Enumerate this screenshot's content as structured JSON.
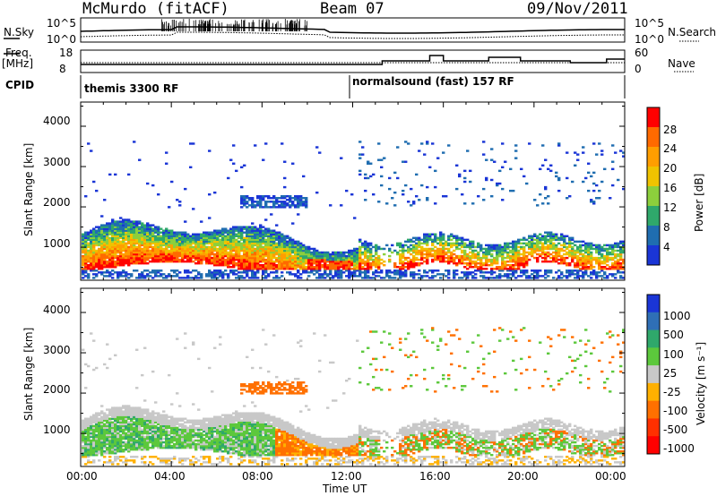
{
  "header": {
    "title": "McMurdo (fitACF)",
    "beam": "Beam 07",
    "date": "09/Nov/2011"
  },
  "strip_labels": {
    "nsky": "N.Sky",
    "nsky_hi": "10^5",
    "nsky_lo": "10^0",
    "nsearch": "N.Search",
    "nsearch_hi": "10^5",
    "nsearch_lo": "10^0",
    "freq": "Freq.",
    "freq_unit": "[MHz]",
    "freq_hi": "18",
    "freq_lo": "8",
    "nave": "Nave",
    "nave_hi": "60",
    "nave_lo": "0",
    "cpid": "CPID",
    "mode1": "themis 3300 RF",
    "mode2": "normalsound (fast) 157 RF"
  },
  "chart_data": [
    {
      "type": "heatmap",
      "panel": "power",
      "ylabel": "Slant Range [km]",
      "yticks": [
        "4000",
        "3000",
        "2000",
        "1000"
      ],
      "ylim": [
        180,
        4600
      ],
      "colorbar_label": "Power [dB]",
      "colorbar_ticks": [
        "28",
        "24",
        "20",
        "16",
        "12",
        "8",
        "4"
      ],
      "colorbar_colors": [
        "#ff0000",
        "#ff6a00",
        "#ff9e00",
        "#f0c300",
        "#8ccf3c",
        "#2fa86b",
        "#1f6db0",
        "#1a35d6"
      ]
    },
    {
      "type": "heatmap",
      "panel": "velocity",
      "ylabel": "Slant Range [km]",
      "yticks": [
        "4000",
        "3000",
        "2000",
        "1000"
      ],
      "ylim": [
        180,
        4600
      ],
      "colorbar_label": "Velocity [m s⁻¹]",
      "colorbar_ticks": [
        "1000",
        "500",
        "100",
        "25",
        "-25",
        "-100",
        "-500",
        "-1000"
      ],
      "colorbar_colors": [
        "#1a35d6",
        "#2f6fb6",
        "#2fa86b",
        "#5cc83c",
        "#c8c8c8",
        "#ffb000",
        "#ff7000",
        "#ff3000",
        "#ff0000"
      ]
    }
  ],
  "x_axis": {
    "label": "Time UT",
    "ticks": [
      "00:00",
      "04:00",
      "08:00",
      "12:00",
      "16:00",
      "20:00",
      "00:00"
    ]
  }
}
